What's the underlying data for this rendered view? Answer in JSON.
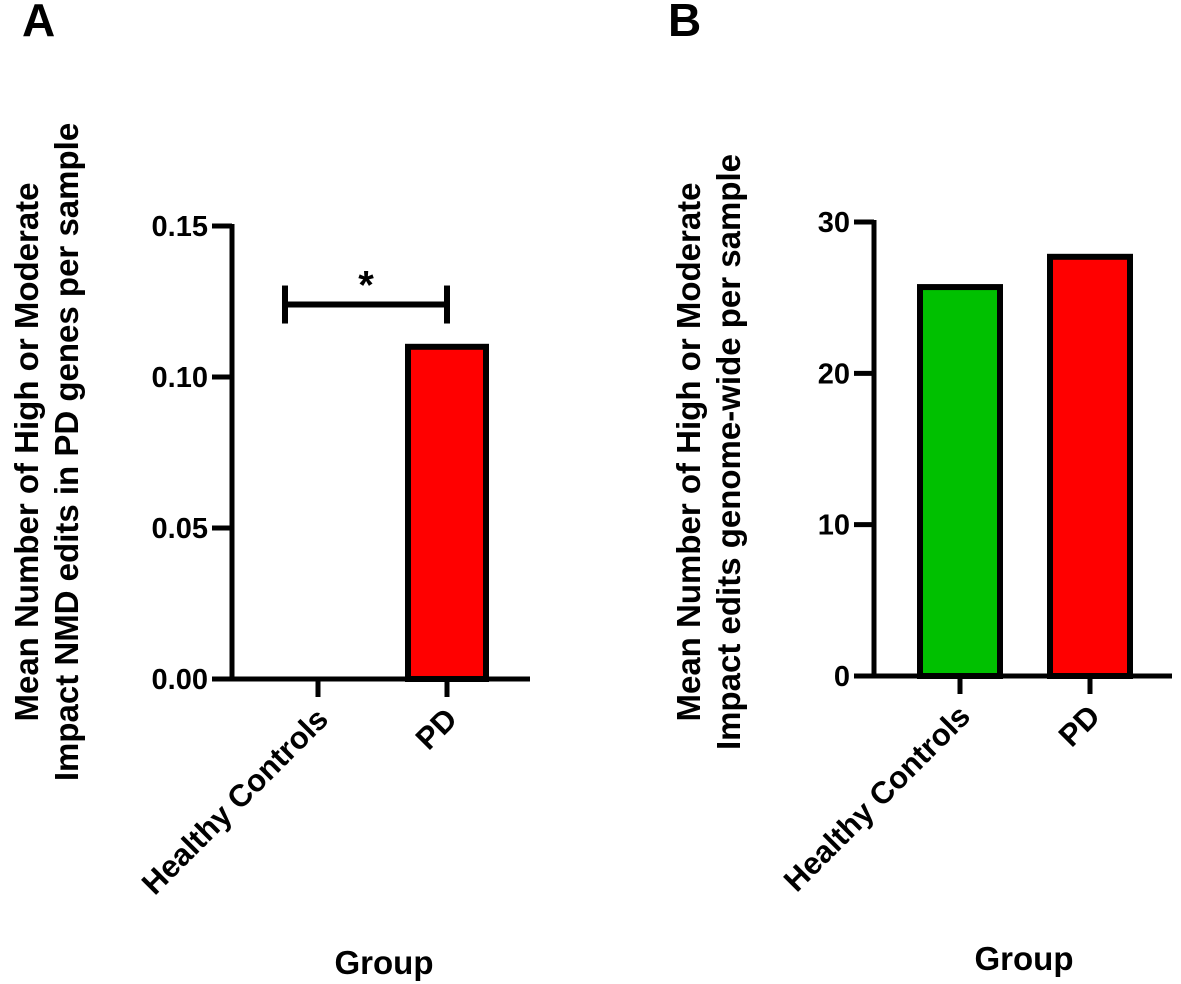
{
  "chart_data": [
    {
      "panel": "A",
      "type": "bar",
      "categories": [
        "Healthy Controls",
        "PD"
      ],
      "values": [
        0.0,
        0.11
      ],
      "bar_colors": [
        "#00c000",
        "#ff0000"
      ],
      "ylabel_lines": [
        "Mean Number of  High or Moderate",
        "Impact NMD edits in  PD genes per sample"
      ],
      "xlabel": "Group",
      "ylim": [
        0,
        0.15
      ],
      "yticks": [
        "0.00",
        "0.05",
        "0.10",
        "0.15"
      ],
      "ytick_values": [
        0,
        0.05,
        0.1,
        0.15
      ],
      "significance": {
        "between": [
          0,
          1
        ],
        "label": "*",
        "y": 0.124
      }
    },
    {
      "panel": "B",
      "type": "bar",
      "categories": [
        "Healthy Controls",
        "PD"
      ],
      "values": [
        25.7,
        27.7
      ],
      "bar_colors": [
        "#00c000",
        "#ff0000"
      ],
      "ylabel_lines": [
        "Mean Number of  High or Moderate",
        "Impact edits genome-wide per sample"
      ],
      "xlabel": "Group",
      "ylim": [
        0,
        30
      ],
      "yticks": [
        "0",
        "10",
        "20",
        "30"
      ],
      "ytick_values": [
        0,
        10,
        20,
        30
      ]
    }
  ]
}
